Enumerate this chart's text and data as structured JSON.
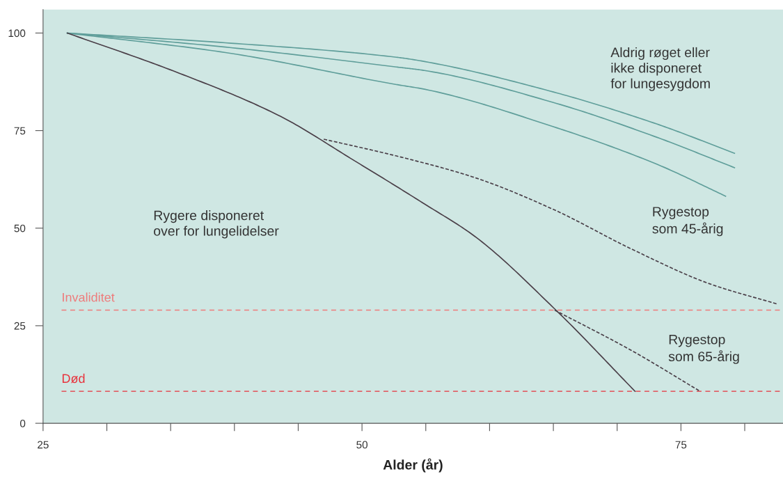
{
  "chart_data": {
    "type": "line",
    "xlabel": "Alder (år)",
    "xlim": [
      25,
      83
    ],
    "ylim": [
      0,
      106
    ],
    "xticks": [
      25,
      {
        "value": 30,
        "label": null
      },
      {
        "value": 35,
        "label": null
      },
      {
        "value": 40,
        "label": null
      },
      {
        "value": 45,
        "label": null
      },
      50,
      {
        "value": 55,
        "label": null
      },
      {
        "value": 60,
        "label": null
      },
      {
        "value": 65,
        "label": null
      },
      {
        "value": 70,
        "label": null
      },
      75,
      {
        "value": 80,
        "label": null
      }
    ],
    "yticks": [
      0,
      25,
      50,
      75,
      100
    ],
    "grid": false,
    "legend": false,
    "series": [
      {
        "color": "#5f9e9a",
        "line_style": "solid",
        "x": [
          26.9,
          39.3,
          52.7,
          54.9,
          65.0,
          73.1,
          79.2
        ],
        "values": [
          100,
          97.5,
          93.8,
          92.7,
          84.9,
          76.7,
          69.2
        ]
      },
      {
        "color": "#5f9e9a",
        "line_style": "solid",
        "x": [
          26.9,
          39.3,
          52.7,
          54.9,
          65.0,
          73.1,
          79.2
        ],
        "values": [
          100,
          96.4,
          91.3,
          90.4,
          82.2,
          73.3,
          65.5
        ]
      },
      {
        "color": "#5f9e9a",
        "line_style": "solid",
        "x": [
          26.9,
          39.3,
          52.7,
          54.9,
          65.0,
          73.1,
          78.5
        ],
        "values": [
          100,
          95.0,
          86.8,
          85.6,
          76.0,
          66.4,
          58.2
        ]
      },
      {
        "color": "#4a3f48",
        "line_style": "solid",
        "x": [
          26.9,
          35.2,
          43.4,
          49.5,
          54.9,
          58.8,
          65.2,
          71.4
        ],
        "values": [
          100,
          90.3,
          79.0,
          67.1,
          56.2,
          48.0,
          29.0,
          8.2
        ]
      },
      {
        "color": "#4a3f48",
        "line_style": "dashed",
        "x": [
          47.0,
          52.7,
          58.8,
          65.0,
          71.1,
          77.2,
          82.5
        ],
        "values": [
          72.8,
          68.5,
          63.0,
          54.8,
          44.7,
          35.8,
          30.6
        ]
      },
      {
        "color": "#4a3f48",
        "line_style": "dashed",
        "x": [
          65.1,
          71.1,
          76.5
        ],
        "values": [
          29.0,
          18.7,
          8.2
        ]
      }
    ],
    "ref_lines": [
      {
        "axis": "y",
        "value": 29,
        "label": "Invaliditet",
        "color": "#ee7b7b",
        "line_style": "dashed"
      },
      {
        "axis": "y",
        "value": 8.2,
        "label": "Død",
        "color": "#e8323c",
        "line_style": "dashed"
      }
    ],
    "annotations": [
      "Aldrig røget eller\nikke disponeret\nfor lungesygdom",
      "Rygestop\nsom 45-årig",
      "Rygestop\nsom 65-årig",
      "Rygere disponeret\nover for lungelidelser"
    ]
  }
}
